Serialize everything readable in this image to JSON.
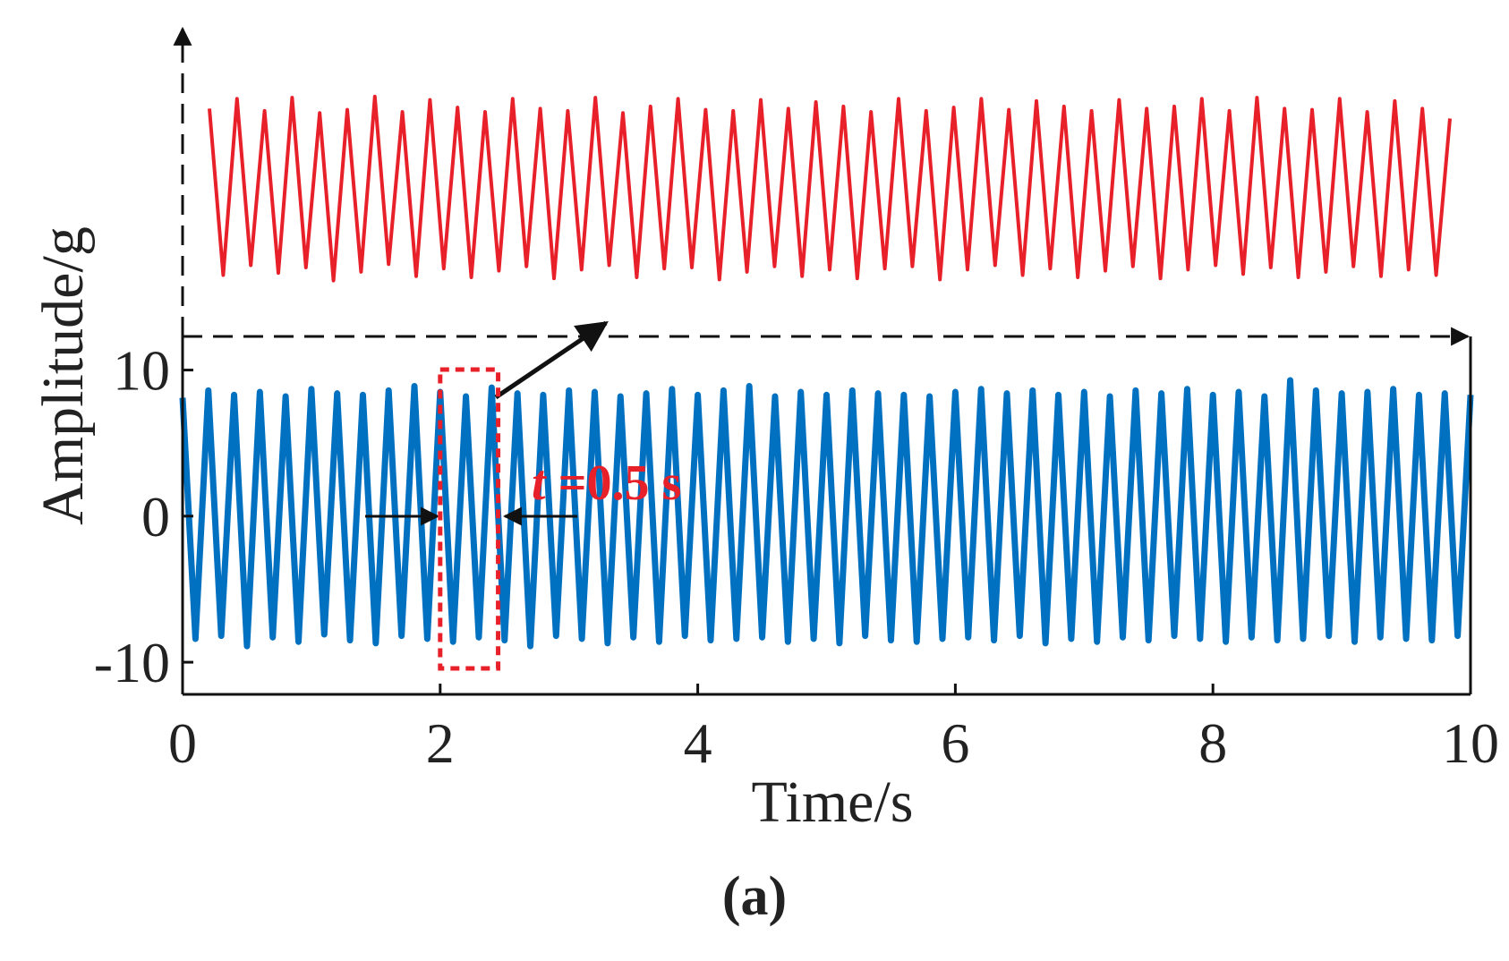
{
  "chart_data": {
    "type": "line",
    "xlabel": "Time/s",
    "ylabel": "Amplitude/g",
    "caption": "(a)",
    "annotation_var": "t",
    "annotation_text": " =0.5 s",
    "xlim": [
      0,
      10
    ],
    "xticks": [
      0,
      2,
      4,
      6,
      8,
      10
    ],
    "ylim": [
      -12.2,
      12.3
    ],
    "yticks": [
      -10,
      0,
      10
    ],
    "series": [
      {
        "color": "#0070c0",
        "inset": false,
        "x": [
          0,
          0.1,
          0.2,
          0.3,
          0.4,
          0.5,
          0.6,
          0.7,
          0.8,
          0.9,
          1,
          1.1,
          1.2,
          1.3,
          1.4,
          1.5,
          1.6,
          1.7,
          1.8,
          1.9,
          2,
          2.1,
          2.2,
          2.3,
          2.4,
          2.5,
          2.6,
          2.7,
          2.8,
          2.9,
          3,
          3.1,
          3.2,
          3.3,
          3.4,
          3.5,
          3.6,
          3.7,
          3.8,
          3.9,
          4,
          4.1,
          4.2,
          4.3,
          4.4,
          4.5,
          4.6,
          4.7,
          4.8,
          4.9,
          5,
          5.1,
          5.2,
          5.3,
          5.4,
          5.5,
          5.6,
          5.7,
          5.8,
          5.9,
          6,
          6.1,
          6.2,
          6.3,
          6.4,
          6.5,
          6.6,
          6.7,
          6.8,
          6.9,
          7,
          7.1,
          7.2,
          7.3,
          7.4,
          7.5,
          7.6,
          7.7,
          7.8,
          7.9,
          8,
          8.1,
          8.2,
          8.3,
          8.4,
          8.5,
          8.6,
          8.7,
          8.8,
          8.9,
          9,
          9.1,
          9.2,
          9.3,
          9.4,
          9.5,
          9.6,
          9.7,
          9.8,
          9.9,
          10
        ],
        "values": [
          8.1,
          -8.4,
          8.6,
          -8.2,
          8.3,
          -8.9,
          8.5,
          -8.3,
          8.2,
          -8.6,
          8.7,
          -8.1,
          8.4,
          -8.5,
          8.3,
          -8.7,
          8.6,
          -8.2,
          8.9,
          -8.4,
          8.5,
          -8.6,
          8.2,
          -8.3,
          8.8,
          -8.5,
          8.4,
          -8.9,
          8.3,
          -8.2,
          8.6,
          -8.4,
          8.5,
          -8.7,
          8.2,
          -8.3,
          8.4,
          -8.6,
          8.7,
          -8.2,
          8.3,
          -8.5,
          8.6,
          -8.4,
          8.9,
          -8.3,
          8.2,
          -8.6,
          8.5,
          -8.4,
          8.3,
          -8.7,
          8.6,
          -8.2,
          8.4,
          -8.5,
          8.3,
          -8.6,
          8.2,
          -8.4,
          8.5,
          -8.3,
          8.7,
          -8.5,
          8.4,
          -8.2,
          8.6,
          -8.7,
          8.3,
          -8.4,
          8.5,
          -8.6,
          8.2,
          -8.3,
          8.6,
          -8.5,
          8.4,
          -8.2,
          8.7,
          -8.4,
          8.3,
          -8.6,
          8.5,
          -8.3,
          8.2,
          -8.5,
          9.3,
          -8.4,
          8.6,
          -8.2,
          8.4,
          -8.6,
          8.5,
          -8.3,
          8.7,
          -8.4,
          8.3,
          -8.5,
          8.4,
          -8.2,
          8.3
        ]
      },
      {
        "color": "#e8202a",
        "inset": true,
        "x": [
          2,
          2.005,
          2.01,
          2.015,
          2.02,
          2.025,
          2.03,
          2.035,
          2.04,
          2.045,
          2.05,
          2.055,
          2.06,
          2.065,
          2.07,
          2.075,
          2.08,
          2.085,
          2.09,
          2.095,
          2.1,
          2.105,
          2.11,
          2.115,
          2.12,
          2.125,
          2.13,
          2.135,
          2.14,
          2.145,
          2.15,
          2.155,
          2.16,
          2.165,
          2.17,
          2.175,
          2.18,
          2.185,
          2.19,
          2.195,
          2.2,
          2.205,
          2.21,
          2.215,
          2.22,
          2.225,
          2.23,
          2.235,
          2.24,
          2.245,
          2.25,
          2.255,
          2.26,
          2.265,
          2.27,
          2.275,
          2.28,
          2.285,
          2.29,
          2.295,
          2.3,
          2.305,
          2.31,
          2.315,
          2.32,
          2.325,
          2.33,
          2.335,
          2.34,
          2.345,
          2.35,
          2.355,
          2.36,
          2.365,
          2.37,
          2.375,
          2.38,
          2.385,
          2.39,
          2.395,
          2.4,
          2.405,
          2.41,
          2.415,
          2.42,
          2.425,
          2.43,
          2.435,
          2.44,
          2.445,
          2.45
        ],
        "values": [
          7.4,
          -7.8,
          8.3,
          -6.9,
          7.2,
          -7.6,
          8.4,
          -7.1,
          7.0,
          -8.3,
          7.3,
          -7.5,
          8.5,
          -6.8,
          7.1,
          -7.9,
          8.2,
          -7.2,
          7.5,
          -8.0,
          7.1,
          -7.4,
          8.3,
          -7.0,
          7.4,
          -8.1,
          7.2,
          -7.3,
          8.4,
          -6.9,
          7.0,
          -8.0,
          7.6,
          -7.2,
          8.3,
          -7.1,
          7.3,
          -8.2,
          7.2,
          -7.5,
          8.2,
          -7.0,
          7.4,
          -7.9,
          8.0,
          -7.3,
          7.6,
          -8.1,
          7.1,
          -7.2,
          8.3,
          -7.0,
          7.2,
          -8.2,
          7.5,
          -7.3,
          8.3,
          -6.9,
          7.3,
          -7.8,
          8.1,
          -7.2,
          7.6,
          -8.0,
          7.2,
          -7.4,
          8.2,
          -7.0,
          7.4,
          -8.1,
          7.6,
          -7.3,
          8.3,
          -6.9,
          7.2,
          -7.7,
          8.4,
          -7.1,
          7.4,
          -8.0,
          7.3,
          -7.5,
          8.3,
          -7.0,
          7.1,
          -7.9,
          8.1,
          -7.3,
          7.4,
          -7.8,
          6.5
        ]
      }
    ]
  }
}
